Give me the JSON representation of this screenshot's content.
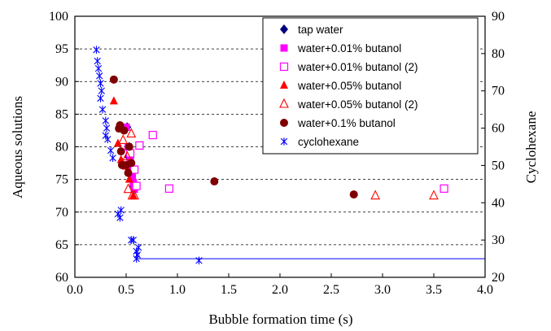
{
  "chart_data": {
    "type": "scatter",
    "xlabel": "Bubble formation time (s)",
    "ylabel": "Aqueous solutions",
    "y2label": "Cyclohexane",
    "xlim": [
      0,
      4
    ],
    "ylim": [
      60,
      100
    ],
    "y2lim": [
      20,
      90
    ],
    "x_ticks": [
      "0.0",
      "0.5",
      "1.0",
      "1.5",
      "2.0",
      "2.5",
      "3.0",
      "3.5",
      "4.0"
    ],
    "y_ticks": [
      "60",
      "65",
      "70",
      "75",
      "80",
      "85",
      "90",
      "95",
      "100"
    ],
    "y2_ticks": [
      "20",
      "30",
      "40",
      "50",
      "60",
      "70",
      "80",
      "90"
    ],
    "gridlines": "dashed horizontal at each left-axis tick from 65 to 95",
    "legend_position": "top-right",
    "series": [
      {
        "name": "tap water",
        "axis": "left",
        "marker": "diamond",
        "color": "#00007f",
        "points": [
          [
            0.51,
            83.0
          ],
          [
            0.52,
            78.5
          ],
          [
            0.53,
            80.0
          ],
          [
            0.54,
            77.0
          ],
          [
            0.55,
            75.5
          ],
          [
            0.56,
            74.8
          ],
          [
            0.57,
            74.0
          ],
          [
            0.58,
            73.5
          ],
          [
            0.53,
            76.5
          ]
        ]
      },
      {
        "name": "water+0.01% butanol",
        "axis": "left",
        "marker": "square-filled",
        "color": "#ff00ff",
        "points": [
          [
            0.5,
            83.0
          ],
          [
            0.52,
            80.0
          ],
          [
            0.54,
            78.0
          ],
          [
            0.55,
            76.5
          ],
          [
            0.56,
            75.5
          ],
          [
            0.57,
            74.5
          ],
          [
            0.58,
            73.5
          ]
        ]
      },
      {
        "name": "water+0.01% butanol (2)",
        "axis": "left",
        "marker": "square-open",
        "color": "#ff00ff",
        "points": [
          [
            0.54,
            79.0
          ],
          [
            0.58,
            76.5
          ],
          [
            0.6,
            74.0
          ],
          [
            0.63,
            80.2
          ],
          [
            0.76,
            81.8
          ],
          [
            0.92,
            73.6
          ],
          [
            3.6,
            73.6
          ]
        ]
      },
      {
        "name": "water+0.05% butanol",
        "axis": "left",
        "marker": "triangle-filled",
        "color": "#ff0000",
        "points": [
          [
            0.38,
            87.0
          ],
          [
            0.42,
            80.5
          ],
          [
            0.45,
            78.0
          ],
          [
            0.5,
            77.0
          ],
          [
            0.53,
            75.0
          ],
          [
            0.57,
            72.5
          ]
        ]
      },
      {
        "name": "water+0.05% butanol (2)",
        "axis": "left",
        "marker": "triangle-open",
        "color": "#ff0000",
        "points": [
          [
            0.47,
            81.0
          ],
          [
            0.51,
            78.5
          ],
          [
            0.52,
            73.5
          ],
          [
            0.55,
            82.0
          ],
          [
            0.56,
            72.5
          ],
          [
            0.58,
            72.5
          ],
          [
            2.93,
            72.5
          ],
          [
            3.5,
            72.5
          ]
        ]
      },
      {
        "name": "water+0.1% butanol",
        "axis": "left",
        "marker": "circle-filled",
        "color": "#7f0000",
        "points": [
          [
            0.38,
            90.3
          ],
          [
            0.43,
            82.8
          ],
          [
            0.44,
            83.3
          ],
          [
            0.45,
            79.3
          ],
          [
            0.46,
            77.2
          ],
          [
            0.48,
            82.5
          ],
          [
            0.5,
            77.2
          ],
          [
            0.52,
            76.0
          ],
          [
            0.53,
            80.0
          ],
          [
            0.55,
            77.5
          ],
          [
            1.36,
            74.7
          ],
          [
            2.72,
            72.7
          ]
        ]
      },
      {
        "name": "cyclohexane",
        "axis": "right",
        "marker": "asterisk",
        "color": "#0000ff",
        "points": [
          [
            0.21,
            81
          ],
          [
            0.22,
            78
          ],
          [
            0.23,
            76
          ],
          [
            0.24,
            74
          ],
          [
            0.25,
            72
          ],
          [
            0.26,
            70
          ],
          [
            0.25,
            68
          ],
          [
            0.27,
            65
          ],
          [
            0.3,
            62
          ],
          [
            0.31,
            60
          ],
          [
            0.3,
            58
          ],
          [
            0.32,
            57
          ],
          [
            0.35,
            54
          ],
          [
            0.37,
            52
          ],
          [
            0.42,
            37
          ],
          [
            0.44,
            36
          ],
          [
            0.45,
            38
          ],
          [
            0.55,
            30
          ],
          [
            0.57,
            30
          ],
          [
            0.6,
            27
          ],
          [
            0.61,
            26
          ],
          [
            0.62,
            28
          ],
          [
            0.6,
            25
          ],
          [
            1.21,
            24.5
          ]
        ],
        "line": [
          [
            0.6,
            25
          ],
          [
            4.0,
            25
          ]
        ]
      }
    ]
  }
}
